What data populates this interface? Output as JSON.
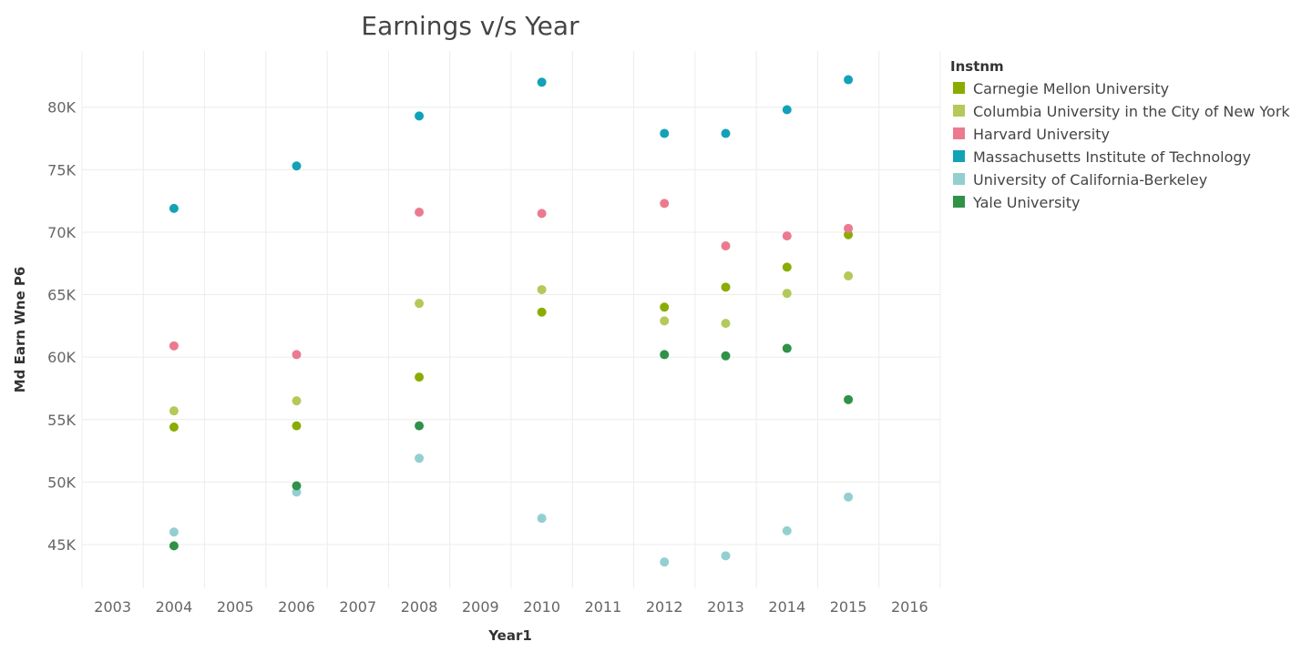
{
  "chart_data": {
    "type": "scatter",
    "title": "Earnings v/s Year",
    "xlabel": "Year1",
    "ylabel": "Md Earn Wne P6",
    "x_ticks": [
      "2003",
      "2004",
      "2005",
      "2006",
      "2007",
      "2008",
      "2009",
      "2010",
      "2011",
      "2012",
      "2013",
      "2014",
      "2015",
      "2016"
    ],
    "y_ticks": [
      "45K",
      "50K",
      "55K",
      "60K",
      "65K",
      "70K",
      "75K",
      "80K"
    ],
    "y_tick_values": [
      45000,
      50000,
      55000,
      60000,
      65000,
      70000,
      75000,
      80000
    ],
    "ylim": [
      41500,
      84500
    ],
    "grid": true,
    "legend": {
      "title": "Instnm",
      "position": "right"
    },
    "series": [
      {
        "name": "Carnegie Mellon University",
        "color": "#8aac00",
        "points": [
          {
            "x": "2004",
            "y": 54400
          },
          {
            "x": "2006",
            "y": 54500
          },
          {
            "x": "2008",
            "y": 58400
          },
          {
            "x": "2010",
            "y": 63600
          },
          {
            "x": "2012",
            "y": 64000
          },
          {
            "x": "2013",
            "y": 65600
          },
          {
            "x": "2014",
            "y": 67200
          },
          {
            "x": "2015",
            "y": 69800
          }
        ]
      },
      {
        "name": "Columbia University in the City of New York",
        "color": "#b3c95a",
        "points": [
          {
            "x": "2004",
            "y": 55700
          },
          {
            "x": "2006",
            "y": 56500
          },
          {
            "x": "2008",
            "y": 64300
          },
          {
            "x": "2010",
            "y": 65400
          },
          {
            "x": "2012",
            "y": 62900
          },
          {
            "x": "2013",
            "y": 62700
          },
          {
            "x": "2014",
            "y": 65100
          },
          {
            "x": "2015",
            "y": 66500
          }
        ]
      },
      {
        "name": "Harvard University",
        "color": "#ec7a8e",
        "points": [
          {
            "x": "2004",
            "y": 60900
          },
          {
            "x": "2006",
            "y": 60200
          },
          {
            "x": "2008",
            "y": 71600
          },
          {
            "x": "2010",
            "y": 71500
          },
          {
            "x": "2012",
            "y": 72300
          },
          {
            "x": "2013",
            "y": 68900
          },
          {
            "x": "2014",
            "y": 69700
          },
          {
            "x": "2015",
            "y": 70300
          }
        ]
      },
      {
        "name": "Massachusetts Institute of Technology",
        "color": "#12a2b7",
        "points": [
          {
            "x": "2004",
            "y": 71900
          },
          {
            "x": "2006",
            "y": 75300
          },
          {
            "x": "2008",
            "y": 79300
          },
          {
            "x": "2010",
            "y": 82000
          },
          {
            "x": "2012",
            "y": 77900
          },
          {
            "x": "2013",
            "y": 77900
          },
          {
            "x": "2014",
            "y": 79800
          },
          {
            "x": "2015",
            "y": 82200
          }
        ]
      },
      {
        "name": "University of California-Berkeley",
        "color": "#93cfd0",
        "points": [
          {
            "x": "2004",
            "y": 46000
          },
          {
            "x": "2006",
            "y": 49200
          },
          {
            "x": "2008",
            "y": 51900
          },
          {
            "x": "2010",
            "y": 47100
          },
          {
            "x": "2012",
            "y": 43600
          },
          {
            "x": "2013",
            "y": 44100
          },
          {
            "x": "2014",
            "y": 46100
          },
          {
            "x": "2015",
            "y": 48800
          }
        ]
      },
      {
        "name": "Yale University",
        "color": "#2f9247",
        "points": [
          {
            "x": "2004",
            "y": 44900
          },
          {
            "x": "2006",
            "y": 49700
          },
          {
            "x": "2008",
            "y": 54500
          },
          {
            "x": "2012",
            "y": 60200
          },
          {
            "x": "2013",
            "y": 60100
          },
          {
            "x": "2014",
            "y": 60700
          },
          {
            "x": "2015",
            "y": 56600
          }
        ]
      }
    ]
  }
}
